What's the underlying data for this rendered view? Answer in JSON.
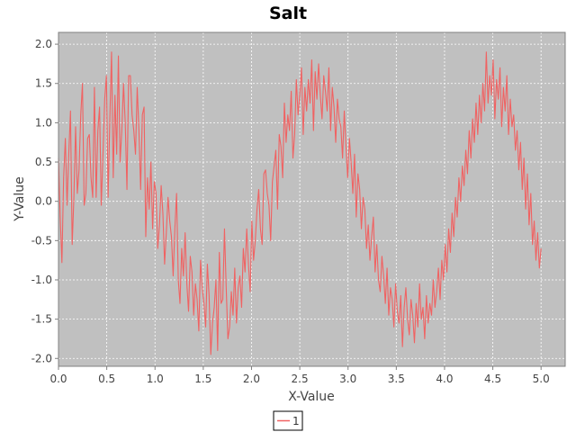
{
  "chart_data": {
    "type": "line",
    "title": "Salt",
    "xlabel": "X-Value",
    "ylabel": "Y-Value",
    "xlim": [
      0.0,
      5.25
    ],
    "ylim": [
      -2.1,
      2.15
    ],
    "xticks": [
      0.0,
      0.5,
      1.0,
      1.5,
      2.0,
      2.5,
      3.0,
      3.5,
      4.0,
      4.5,
      5.0
    ],
    "yticks": [
      -2.0,
      -1.5,
      -1.0,
      -0.5,
      0.0,
      0.5,
      1.0,
      1.5,
      2.0
    ],
    "tick_labels_x": [
      "0.0",
      "0.5",
      "1.0",
      "1.5",
      "2.0",
      "2.5",
      "3.0",
      "3.5",
      "4.0",
      "4.5",
      "5.0"
    ],
    "tick_labels_y": [
      "-2.0",
      "-1.5",
      "-1.0",
      "-0.5",
      "0.0",
      "0.5",
      "1.0",
      "1.5",
      "2.0"
    ],
    "grid": true,
    "legend_position": "bottom-center",
    "series": [
      {
        "name": "1",
        "color": "#f06262",
        "x_start": 0.0,
        "x_end": 5.0,
        "values": [
          0.55,
          -0.2,
          -0.78,
          0.3,
          0.8,
          -0.05,
          0.6,
          1.15,
          -0.55,
          0.05,
          0.95,
          0.1,
          0.4,
          1.1,
          1.5,
          -0.05,
          0.1,
          0.8,
          0.85,
          0.3,
          0.05,
          1.45,
          0.05,
          0.9,
          1.2,
          -0.05,
          0.6,
          1.3,
          1.6,
          0.05,
          1.05,
          1.9,
          0.3,
          1.35,
          0.6,
          1.85,
          0.5,
          0.9,
          1.5,
          1.0,
          0.15,
          1.6,
          1.6,
          1.1,
          0.9,
          0.6,
          1.45,
          0.9,
          0.15,
          1.1,
          1.2,
          -0.45,
          0.3,
          -0.1,
          0.5,
          -0.35,
          0.25,
          0.1,
          -0.6,
          -0.3,
          0.2,
          -0.15,
          -0.8,
          -0.4,
          0.05,
          -0.25,
          -0.45,
          -0.95,
          -0.35,
          0.1,
          -1.0,
          -1.3,
          -0.6,
          -0.95,
          -0.4,
          -1.05,
          -1.4,
          -0.7,
          -0.9,
          -1.45,
          -1.05,
          -1.25,
          -1.65,
          -0.75,
          -1.1,
          -1.3,
          -1.6,
          -0.8,
          -1.2,
          -1.95,
          -1.55,
          -1.35,
          -1.0,
          -1.9,
          -0.65,
          -1.3,
          -1.25,
          -0.35,
          -1.1,
          -1.75,
          -1.6,
          -1.15,
          -1.45,
          -0.85,
          -1.55,
          -1.1,
          -0.95,
          -1.35,
          -0.6,
          -0.9,
          -0.35,
          -0.8,
          -1.15,
          -0.25,
          -0.75,
          -0.5,
          -0.1,
          0.15,
          -0.35,
          -0.55,
          0.35,
          0.4,
          0.1,
          -0.05,
          -0.5,
          0.25,
          0.45,
          0.65,
          -0.1,
          0.85,
          0.7,
          0.3,
          1.25,
          0.75,
          1.1,
          0.9,
          1.4,
          0.55,
          0.85,
          1.55,
          1.1,
          1.35,
          1.7,
          0.85,
          1.45,
          1.15,
          1.55,
          1.25,
          1.8,
          0.9,
          1.65,
          1.3,
          1.75,
          1.35,
          1.05,
          1.6,
          1.4,
          1.15,
          1.7,
          0.9,
          1.45,
          1.2,
          0.75,
          1.3,
          1.05,
          0.95,
          0.55,
          1.15,
          0.7,
          0.3,
          0.8,
          0.5,
          0.1,
          0.6,
          -0.2,
          0.35,
          0.15,
          -0.35,
          0.05,
          -0.1,
          -0.6,
          -0.3,
          -0.75,
          -0.45,
          -0.2,
          -0.9,
          -0.55,
          -1.0,
          -1.15,
          -0.7,
          -0.95,
          -1.3,
          -0.85,
          -1.45,
          -1.1,
          -1.25,
          -1.6,
          -1.05,
          -1.4,
          -1.55,
          -1.2,
          -1.85,
          -1.35,
          -1.1,
          -1.5,
          -1.7,
          -1.25,
          -1.45,
          -1.8,
          -1.3,
          -1.6,
          -1.05,
          -1.5,
          -1.35,
          -1.75,
          -1.2,
          -1.55,
          -1.3,
          -1.45,
          -1.0,
          -1.35,
          -1.15,
          -0.85,
          -1.25,
          -0.75,
          -1.0,
          -0.55,
          -0.9,
          -0.35,
          -0.65,
          -0.15,
          -0.45,
          0.05,
          -0.2,
          0.3,
          0.0,
          0.45,
          0.2,
          0.65,
          0.35,
          0.9,
          0.55,
          1.05,
          0.75,
          1.25,
          0.85,
          1.35,
          1.0,
          1.5,
          1.15,
          1.9,
          1.25,
          1.6,
          1.35,
          1.8,
          1.05,
          1.55,
          1.3,
          1.7,
          0.95,
          1.45,
          1.15,
          1.6,
          0.85,
          1.3,
          0.95,
          1.1,
          0.65,
          0.9,
          0.4,
          0.75,
          0.15,
          0.55,
          -0.1,
          0.35,
          -0.3,
          0.1,
          -0.55,
          -0.25,
          -0.75,
          -0.4,
          -0.85,
          -0.6
        ]
      }
    ]
  }
}
